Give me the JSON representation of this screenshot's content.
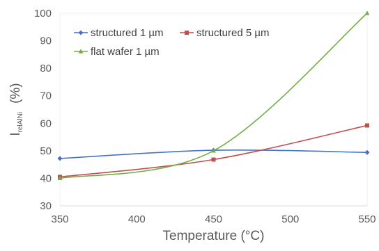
{
  "chart_data": {
    "type": "line",
    "xlabel": "Temperature  (°C)",
    "ylabel": {
      "main": "I",
      "subscript": "relAlNi",
      "unit": "(%)"
    },
    "xlim": [
      350,
      550
    ],
    "ylim": [
      30,
      100
    ],
    "x_ticks": [
      350,
      400,
      450,
      500,
      550
    ],
    "y_ticks": [
      30,
      40,
      50,
      60,
      70,
      80,
      90,
      100
    ],
    "grid": false,
    "legend_position": "top-left",
    "series": [
      {
        "name": "structured 1 µm",
        "color": "#4472c4",
        "marker": "diamond",
        "x": [
          350,
          450,
          550
        ],
        "y": [
          47.2,
          50.2,
          49.4
        ]
      },
      {
        "name": "structured 5 µm",
        "color": "#c0504d",
        "marker": "square",
        "x": [
          350,
          450,
          550
        ],
        "y": [
          40.5,
          46.8,
          59.2
        ]
      },
      {
        "name": "flat wafer 1 µm",
        "color": "#70ad47",
        "marker": "triangle",
        "x": [
          350,
          450,
          550
        ],
        "y": [
          40.0,
          50.0,
          100.0
        ]
      }
    ]
  }
}
